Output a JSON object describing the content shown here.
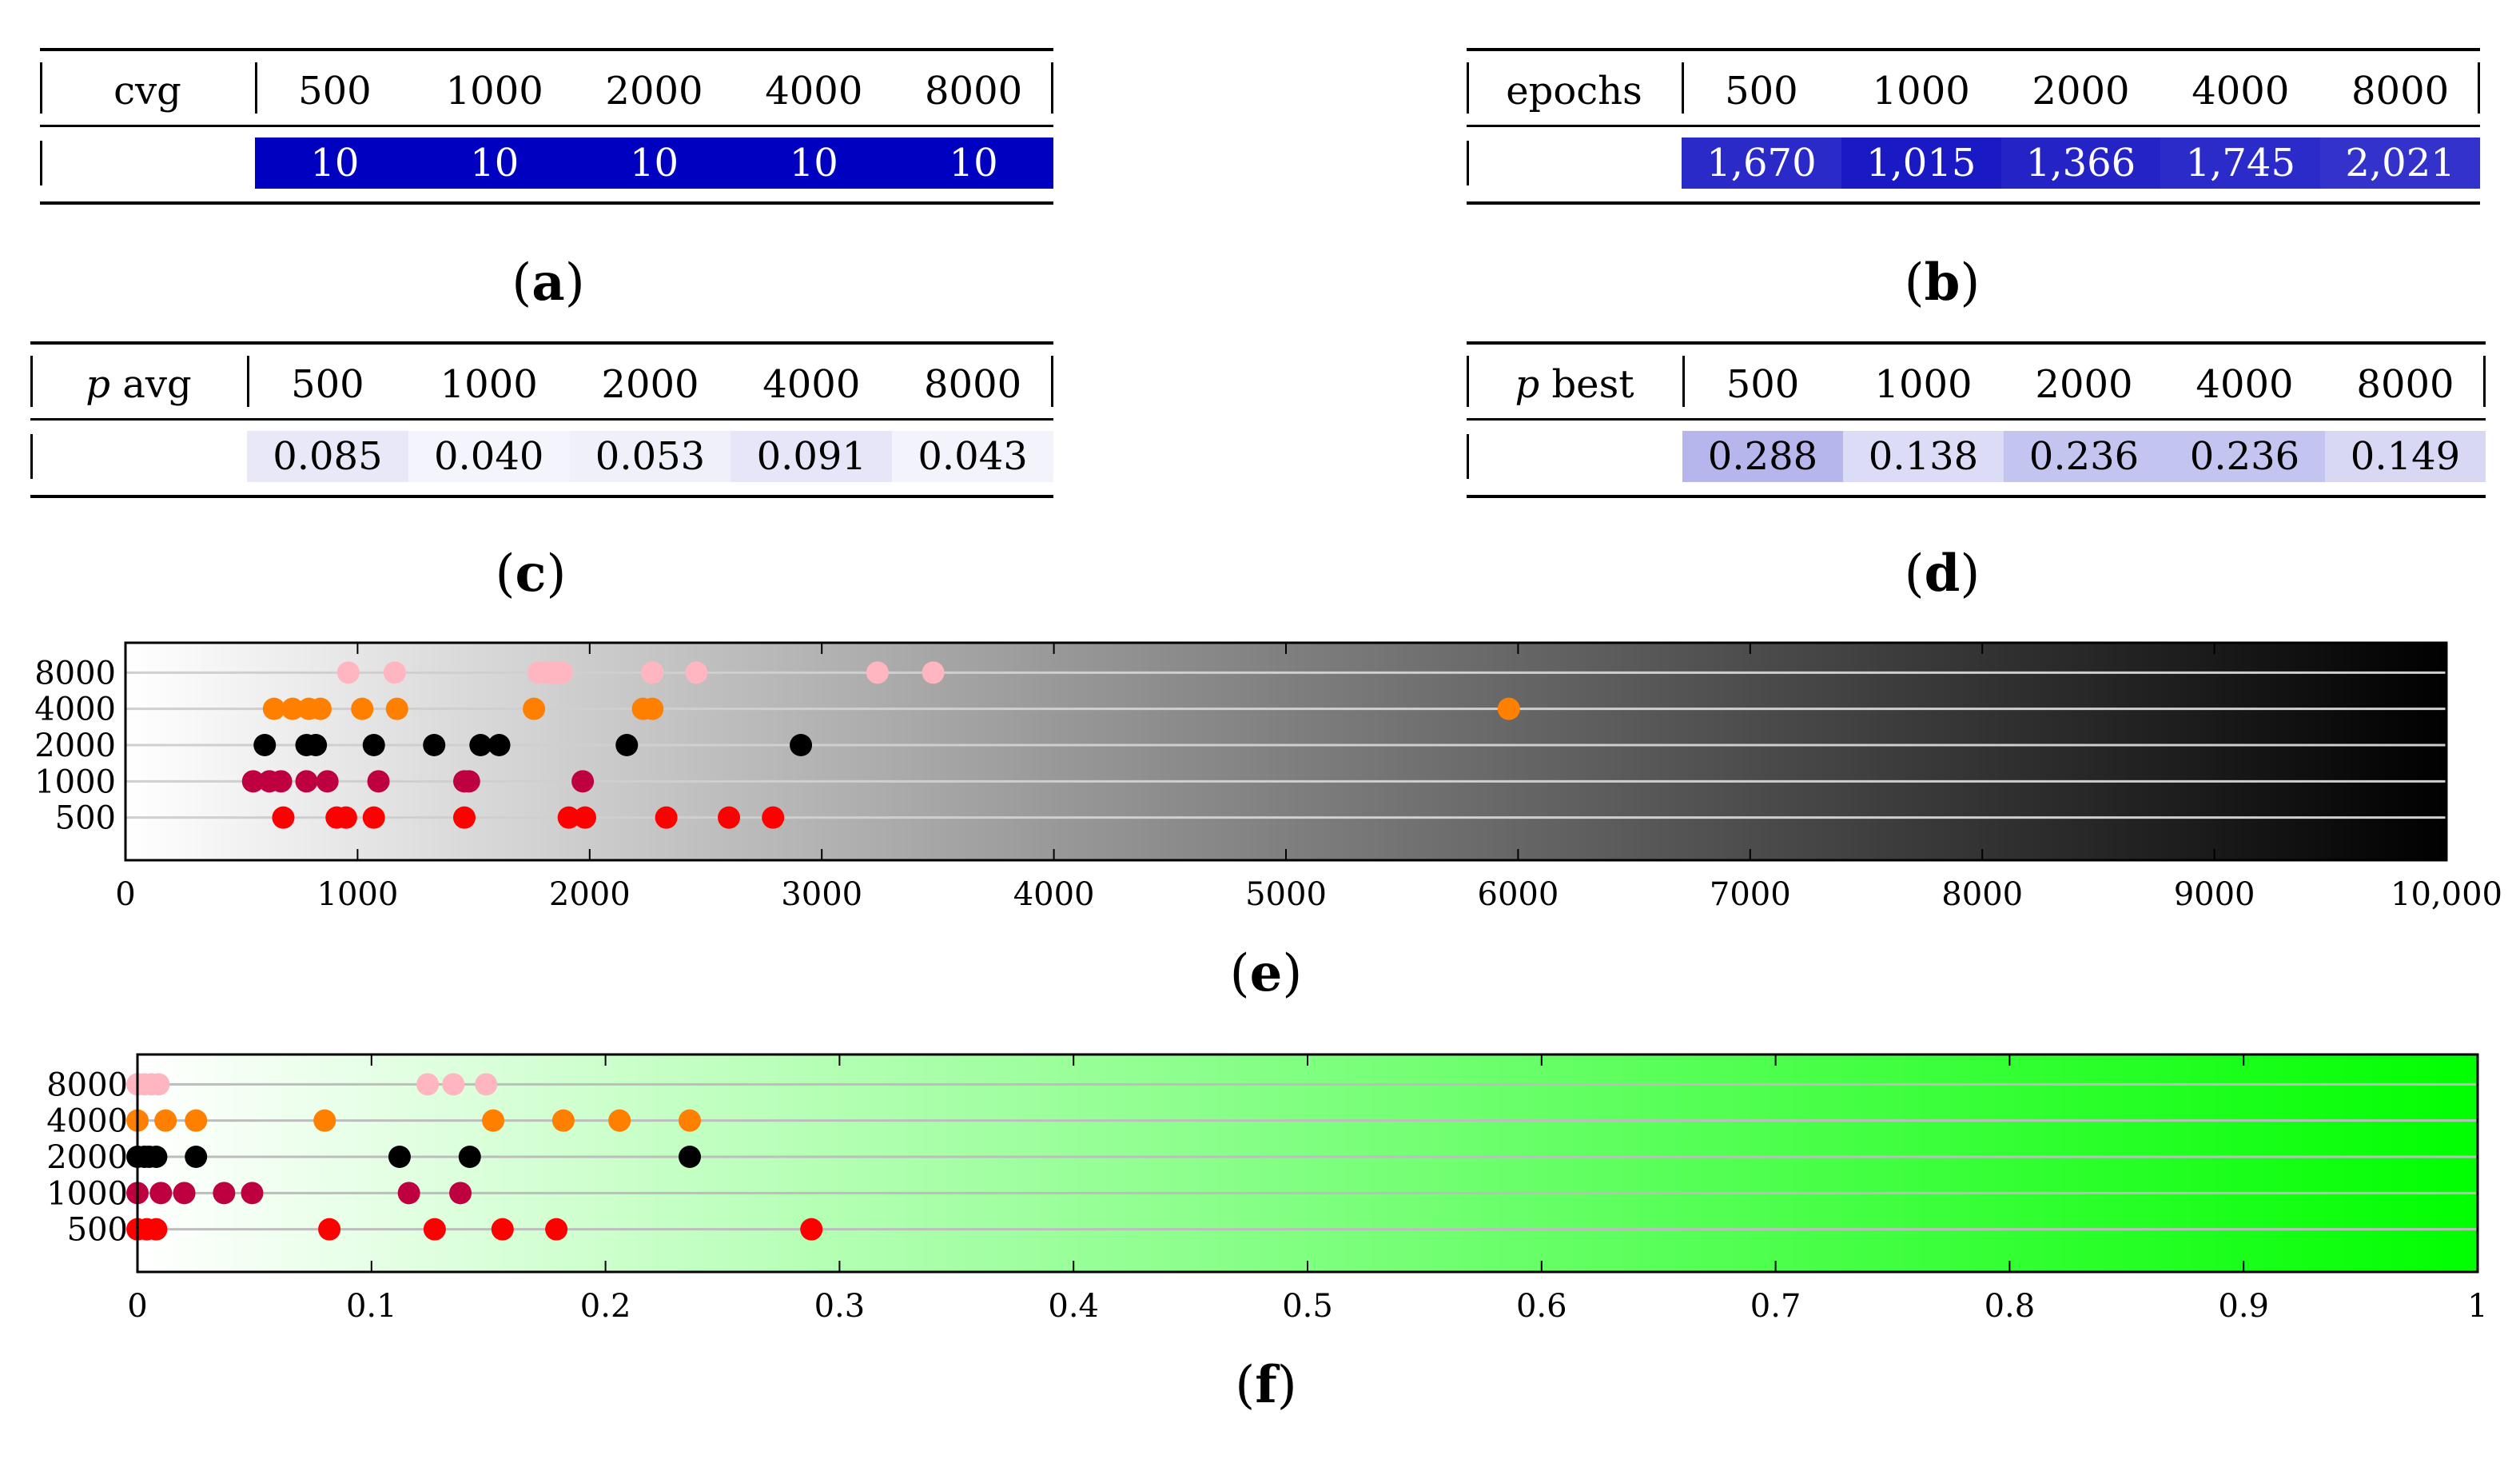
{
  "tables": [
    {
      "id": "a",
      "header_label": "cvg",
      "header_italic_prefix": "",
      "columns": [
        "500",
        "1000",
        "2000",
        "4000",
        "8000"
      ],
      "values": [
        "10",
        "10",
        "10",
        "10",
        "10"
      ],
      "cell_colors": [
        "#0000c0",
        "#0000c0",
        "#0000c0",
        "#0000c0",
        "#0000c0"
      ],
      "text_color": "#ffffff",
      "caption": "a"
    },
    {
      "id": "b",
      "header_label": "epochs",
      "header_italic_prefix": "",
      "columns": [
        "500",
        "1000",
        "2000",
        "4000",
        "8000"
      ],
      "values": [
        "1,670",
        "1,015",
        "1,366",
        "1,745",
        "2,021"
      ],
      "cell_colors": [
        "#2a2ac8",
        "#1a1ac4",
        "#2323c6",
        "#2b2bc9",
        "#3333cc"
      ],
      "text_color": "#ffffff",
      "caption": "b"
    },
    {
      "id": "c",
      "header_label": "avg",
      "header_italic_prefix": "p",
      "columns": [
        "500",
        "1000",
        "2000",
        "4000",
        "8000"
      ],
      "values": [
        "0.085",
        "0.040",
        "0.053",
        "0.091",
        "0.043"
      ],
      "cell_colors": [
        "#e8e8f8",
        "#f4f4fc",
        "#f0f0fb",
        "#e6e6f8",
        "#f3f3fc"
      ],
      "text_color": "#000000",
      "caption": "c"
    },
    {
      "id": "d",
      "header_label": "best",
      "header_italic_prefix": "p",
      "columns": [
        "500",
        "1000",
        "2000",
        "4000",
        "8000"
      ],
      "values": [
        "0.288",
        "0.138",
        "0.236",
        "0.236",
        "0.149"
      ],
      "cell_colors": [
        "#b6b6ec",
        "#dcdcf6",
        "#c4c4f0",
        "#c4c4f0",
        "#d8d8f5"
      ],
      "text_color": "#000000",
      "caption": "d"
    }
  ],
  "chart_data": [
    {
      "id": "e",
      "type": "scatter",
      "caption": "e",
      "xlim": [
        0,
        10000
      ],
      "xticks": [
        0,
        1000,
        2000,
        3000,
        4000,
        5000,
        6000,
        7000,
        8000,
        9000,
        10000
      ],
      "xtick_labels": [
        "0",
        "1000",
        "2000",
        "3000",
        "4000",
        "5000",
        "6000",
        "7000",
        "8000",
        "9000",
        "10,000"
      ],
      "background_gradient": [
        "#ffffff",
        "#000000"
      ],
      "grid_color": "#cfcfcf",
      "series": [
        {
          "name": "8000",
          "color": "#ffb6c1",
          "values": [
            960,
            1160,
            1780,
            1820,
            1850,
            1880,
            2270,
            2460,
            3240,
            3480
          ]
        },
        {
          "name": "4000",
          "color": "#ff7f00",
          "values": [
            640,
            720,
            790,
            840,
            1020,
            1170,
            1760,
            2230,
            2270,
            5960
          ]
        },
        {
          "name": "2000",
          "color": "#000000",
          "values": [
            600,
            780,
            820,
            1070,
            1330,
            1530,
            1610,
            2160,
            2910
          ]
        },
        {
          "name": "1000",
          "color": "#bf0040",
          "values": [
            550,
            620,
            670,
            780,
            870,
            1090,
            1460,
            1480,
            1970
          ]
        },
        {
          "name": "500",
          "color": "#ff0000",
          "values": [
            680,
            910,
            950,
            1070,
            1460,
            1910,
            1980,
            2330,
            2600,
            2790
          ]
        }
      ]
    },
    {
      "id": "f",
      "type": "scatter",
      "caption": "f",
      "xlim": [
        0,
        1
      ],
      "xticks": [
        0,
        0.1,
        0.2,
        0.3,
        0.4,
        0.5,
        0.6,
        0.7,
        0.8,
        0.9,
        1
      ],
      "xtick_labels": [
        "0",
        "0.1",
        "0.2",
        "0.3",
        "0.4",
        "0.5",
        "0.6",
        "0.7",
        "0.8",
        "0.9",
        "1"
      ],
      "background_gradient": [
        "#ffffff",
        "#00ff00"
      ],
      "grid_color": "#bdbdbd",
      "series": [
        {
          "name": "8000",
          "color": "#ffb6c1",
          "values": [
            0.0,
            0.003,
            0.006,
            0.009,
            0.124,
            0.135,
            0.149
          ]
        },
        {
          "name": "4000",
          "color": "#ff7f00",
          "values": [
            0.0,
            0.012,
            0.025,
            0.08,
            0.152,
            0.182,
            0.206,
            0.236
          ]
        },
        {
          "name": "2000",
          "color": "#000000",
          "values": [
            0.0,
            0.003,
            0.005,
            0.008,
            0.025,
            0.112,
            0.142,
            0.236
          ]
        },
        {
          "name": "1000",
          "color": "#bf0040",
          "values": [
            0.0,
            0.01,
            0.02,
            0.037,
            0.049,
            0.116,
            0.138
          ]
        },
        {
          "name": "500",
          "color": "#ff0000",
          "values": [
            0.0,
            0.004,
            0.008,
            0.082,
            0.127,
            0.156,
            0.179,
            0.288
          ]
        }
      ]
    }
  ]
}
